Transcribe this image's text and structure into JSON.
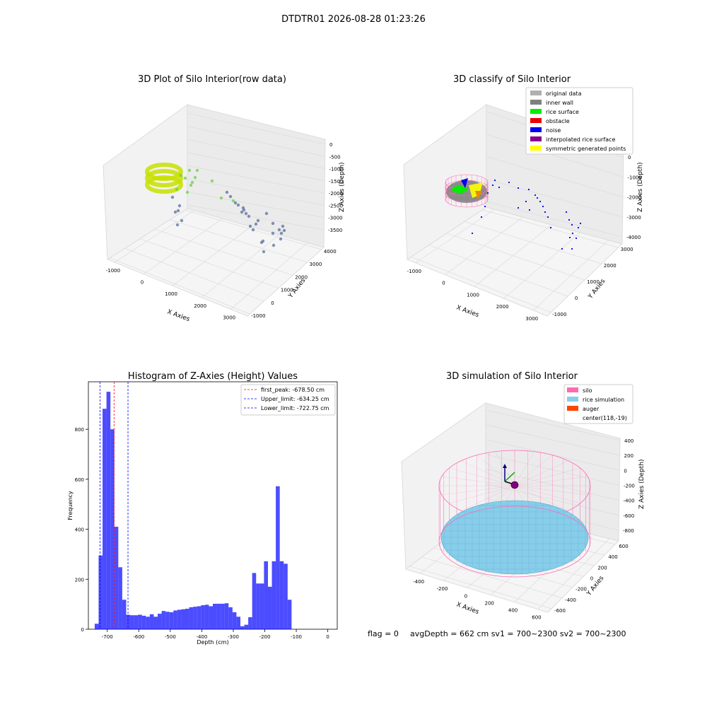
{
  "suptitle": "DTDTR01 2026-08-28 01:23:26",
  "footer": {
    "flag": "flag = 0",
    "stats": "avgDepth = 662 cm  sv1 = 700~2300  sv2 = 700~2300"
  },
  "chart_data": [
    {
      "type": "scatter3d",
      "title": "3D Plot of Silo Interior(row data)",
      "xlabel": "X Axies",
      "ylabel": "Y Axies",
      "zlabel": "Z Axies (Depth)",
      "xticks": [
        "-1000",
        "0",
        "1000",
        "2000",
        "3000"
      ],
      "yticks": [
        "-1000",
        "0",
        "1000",
        "2000",
        "3000",
        "4000"
      ],
      "zticks": [
        "0",
        "-500",
        "-1000",
        "-1500",
        "-2000",
        "-2500",
        "-3000",
        "-3500"
      ],
      "grid": true,
      "colors": {
        "near": "#c8e000",
        "mid": "#6ad04a",
        "far": "#5a6fa0"
      }
    },
    {
      "type": "scatter3d",
      "title": "3D classify of Silo Interior",
      "xlabel": "X Axies",
      "ylabel": "Y Axies",
      "zlabel": "Z Axies (Depth)",
      "xticks": [
        "-1000",
        "0",
        "1000",
        "2000",
        "3000"
      ],
      "yticks": [
        "-1000",
        "0",
        "1000",
        "2000",
        "3000"
      ],
      "zticks": [
        "0",
        "-1000",
        "-2000",
        "-3000",
        "-4000"
      ],
      "grid": true,
      "legend_position": "top-right",
      "legend": [
        {
          "label": "original data",
          "color": "#b0b0b0"
        },
        {
          "label": "inner wall",
          "color": "#808080"
        },
        {
          "label": "rice surface",
          "color": "#00ee00"
        },
        {
          "label": "obstacle",
          "color": "#ee0000"
        },
        {
          "label": "noise",
          "color": "#0000ee"
        },
        {
          "label": "interpolated rice surface",
          "color": "#880088"
        },
        {
          "label": "symmetric generated points",
          "color": "#ffff00"
        }
      ]
    },
    {
      "type": "histogram",
      "title": "Histogram of Z-Axies (Height) Values",
      "xlabel": "Depth (cm)",
      "ylabel": "Frequency",
      "xlim": [
        -760,
        30
      ],
      "ylim": [
        0,
        990
      ],
      "xticks": [
        -700,
        -600,
        -500,
        -400,
        -300,
        -200,
        -100,
        0
      ],
      "yticks": [
        0,
        200,
        400,
        600,
        800
      ],
      "bin_start": -740,
      "bin_width": 12.5,
      "values": [
        22,
        295,
        882,
        950,
        800,
        410,
        248,
        118,
        58,
        56,
        56,
        58,
        54,
        50,
        60,
        50,
        62,
        73,
        70,
        68,
        75,
        78,
        80,
        82,
        88,
        90,
        92,
        96,
        98,
        92,
        102,
        102,
        102,
        104,
        88,
        68,
        50,
        12,
        18,
        48,
        225,
        183,
        183,
        272,
        170,
        272,
        572,
        272,
        262,
        118
      ],
      "color": "#0000ff",
      "legend_position": "top-right",
      "lines": [
        {
          "label": "first_peak: -678.50 cm",
          "x": -678.5,
          "color": "#ff0000"
        },
        {
          "label": "Upper_limit: -634.25 cm",
          "x": -634.25,
          "color": "#0000ff"
        },
        {
          "label": "Lower_limit: -722.75 cm",
          "x": -722.75,
          "color": "#0000ff"
        }
      ]
    },
    {
      "type": "surface3d",
      "title": "3D simulation of Silo Interior",
      "xlabel": "X Axies",
      "ylabel": "Y Axies",
      "zlabel": "Z Axies (Depth)",
      "xticks": [
        "-400",
        "-200",
        "0",
        "200",
        "400",
        "600"
      ],
      "yticks": [
        "-600",
        "-400",
        "-200",
        "0",
        "200",
        "400",
        "600"
      ],
      "zticks": [
        "400",
        "200",
        "0",
        "-200",
        "-400",
        "-600",
        "-800"
      ],
      "grid": true,
      "legend_position": "top-right",
      "legend": [
        {
          "label": "silo",
          "color": "#ff69b4"
        },
        {
          "label": "rice simulation",
          "color": "#87ceeb"
        },
        {
          "label": "auger",
          "color": "#ff4500"
        },
        {
          "label": "center(118,-19)",
          "color": ""
        }
      ]
    }
  ]
}
